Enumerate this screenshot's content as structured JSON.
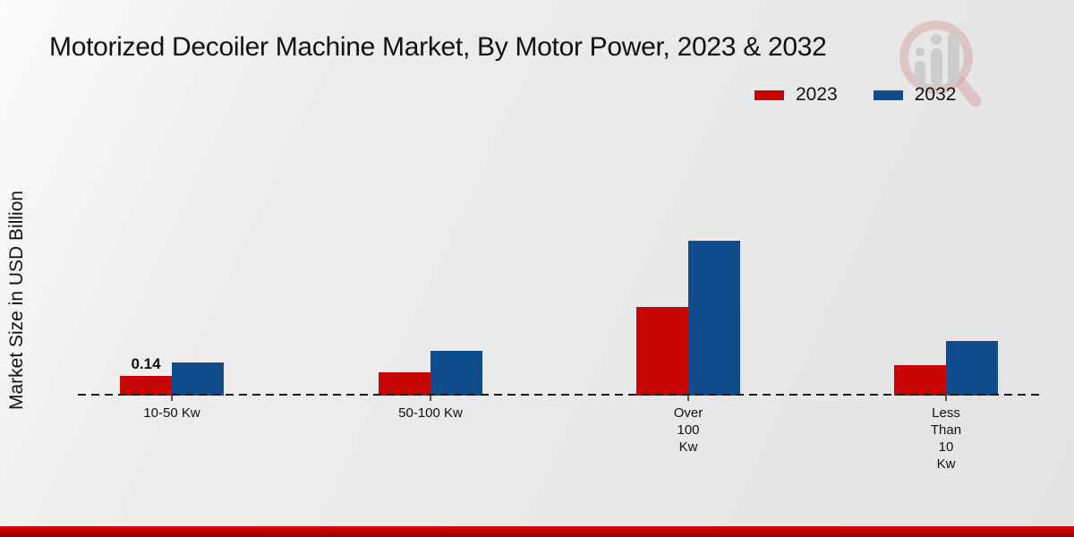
{
  "title": "Motorized Decoiler Machine Market, By Motor Power, 2023 & 2032",
  "y_axis_label": "Market Size in USD Billion",
  "legend": [
    {
      "label": "2023",
      "color": "#c80505"
    },
    {
      "label": "2032",
      "color": "#0f4d8c"
    }
  ],
  "colors": {
    "series_2023": "#c80505",
    "series_2032": "#0f4d8c",
    "bottom_band": "#c30303",
    "text": "#111111"
  },
  "watermark_icon": "magnifier-bar-chart-logo",
  "chart_data": {
    "type": "bar",
    "title": "Motorized Decoiler Machine Market, By Motor Power, 2023 & 2032",
    "xlabel": "",
    "ylabel": "Market Size in USD Billion",
    "categories": [
      "10-50 Kw",
      "50-100 Kw",
      "Over 100 Kw",
      "Less Than 10 Kw"
    ],
    "category_label_lines": [
      [
        "10-50 Kw"
      ],
      [
        "50-100 Kw"
      ],
      [
        "Over",
        "100",
        "Kw"
      ],
      [
        "Less",
        "Than",
        "10",
        "Kw"
      ]
    ],
    "series": [
      {
        "name": "2023",
        "color": "#c80505",
        "values": [
          0.14,
          0.16,
          0.62,
          0.21
        ]
      },
      {
        "name": "2032",
        "color": "#0f4d8c",
        "values": [
          0.23,
          0.31,
          1.08,
          0.38
        ]
      }
    ],
    "value_annotations": [
      {
        "text": "0.14",
        "series_index": 0,
        "category_index": 0
      }
    ],
    "ylim": [
      0,
      1.2
    ],
    "grid": false,
    "baseline_style": "dashed",
    "legend_position": "top-right"
  }
}
